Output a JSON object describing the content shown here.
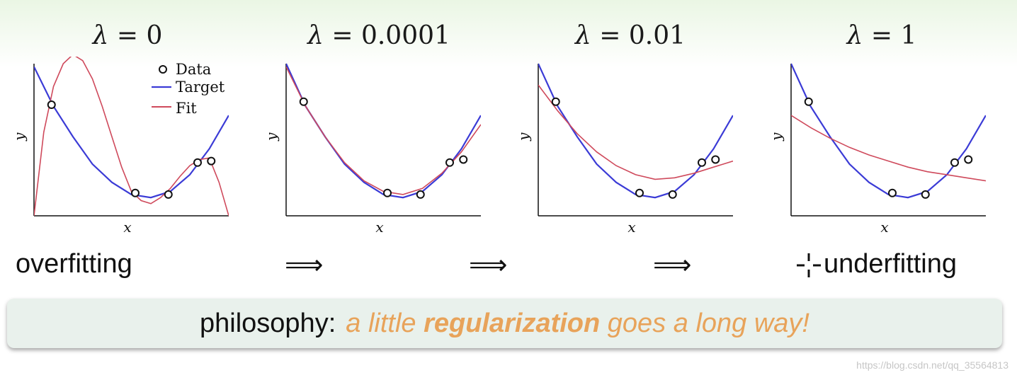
{
  "panels": [
    {
      "title_symbol": "λ",
      "title_eq": " = 0"
    },
    {
      "title_symbol": "λ",
      "title_eq": " = 0.0001"
    },
    {
      "title_symbol": "λ",
      "title_eq": " = 0.01"
    },
    {
      "title_symbol": "λ",
      "title_eq": " = 1"
    }
  ],
  "captions": {
    "left": "overfitting",
    "right": "underfitting",
    "arrow": "⟹"
  },
  "banner": {
    "lead": "philosophy:",
    "part1": "a little ",
    "bold": "regularization",
    "part2": " goes a long way!"
  },
  "watermark": "https://blog.csdn.net/qq_35564813",
  "colors": {
    "target": "#3b3bd6",
    "fit": "#cf4a5c",
    "banner_bg": "#e9f1ec",
    "accent": "#e8a35a"
  },
  "chart_data": [
    {
      "type": "line",
      "title": "λ = 0",
      "xlabel": "x",
      "ylabel": "y",
      "xlim": [
        0,
        1
      ],
      "ylim": [
        0,
        1
      ],
      "legend": [
        "Data",
        "Target",
        "Fit"
      ],
      "legend_position": "top-right",
      "data_points": [
        [
          0.09,
          0.73
        ],
        [
          0.52,
          0.15
        ],
        [
          0.69,
          0.14
        ],
        [
          0.84,
          0.35
        ],
        [
          0.91,
          0.36
        ]
      ],
      "target": [
        [
          0.0,
          0.98
        ],
        [
          0.1,
          0.72
        ],
        [
          0.2,
          0.52
        ],
        [
          0.3,
          0.34
        ],
        [
          0.4,
          0.22
        ],
        [
          0.5,
          0.14
        ],
        [
          0.6,
          0.12
        ],
        [
          0.7,
          0.16
        ],
        [
          0.8,
          0.27
        ],
        [
          0.9,
          0.44
        ],
        [
          1.0,
          0.66
        ]
      ],
      "fit": [
        [
          0.0,
          0.0
        ],
        [
          0.05,
          0.55
        ],
        [
          0.1,
          0.85
        ],
        [
          0.15,
          1.0
        ],
        [
          0.2,
          1.06
        ],
        [
          0.25,
          1.02
        ],
        [
          0.3,
          0.9
        ],
        [
          0.35,
          0.72
        ],
        [
          0.4,
          0.52
        ],
        [
          0.45,
          0.32
        ],
        [
          0.5,
          0.16
        ],
        [
          0.55,
          0.1
        ],
        [
          0.6,
          0.08
        ],
        [
          0.65,
          0.12
        ],
        [
          0.7,
          0.18
        ],
        [
          0.75,
          0.26
        ],
        [
          0.8,
          0.33
        ],
        [
          0.85,
          0.37
        ],
        [
          0.9,
          0.38
        ],
        [
          0.95,
          0.22
        ],
        [
          1.0,
          0.0
        ]
      ]
    },
    {
      "type": "line",
      "title": "λ = 0.0001",
      "xlabel": "x",
      "ylabel": "y",
      "xlim": [
        0,
        1
      ],
      "ylim": [
        0,
        1
      ],
      "data_points": [
        [
          0.09,
          0.75
        ],
        [
          0.52,
          0.15
        ],
        [
          0.69,
          0.14
        ],
        [
          0.84,
          0.35
        ],
        [
          0.91,
          0.37
        ]
      ],
      "target": [
        [
          0.0,
          1.0
        ],
        [
          0.1,
          0.72
        ],
        [
          0.2,
          0.52
        ],
        [
          0.3,
          0.34
        ],
        [
          0.4,
          0.22
        ],
        [
          0.5,
          0.14
        ],
        [
          0.6,
          0.12
        ],
        [
          0.7,
          0.16
        ],
        [
          0.8,
          0.27
        ],
        [
          0.9,
          0.44
        ],
        [
          1.0,
          0.66
        ]
      ],
      "fit": [
        [
          0.0,
          0.98
        ],
        [
          0.1,
          0.72
        ],
        [
          0.2,
          0.52
        ],
        [
          0.3,
          0.35
        ],
        [
          0.4,
          0.23
        ],
        [
          0.5,
          0.16
        ],
        [
          0.6,
          0.14
        ],
        [
          0.7,
          0.18
        ],
        [
          0.8,
          0.28
        ],
        [
          0.9,
          0.42
        ],
        [
          1.0,
          0.6
        ]
      ]
    },
    {
      "type": "line",
      "title": "λ = 0.01",
      "xlabel": "x",
      "ylabel": "y",
      "xlim": [
        0,
        1
      ],
      "ylim": [
        0,
        1
      ],
      "data_points": [
        [
          0.09,
          0.75
        ],
        [
          0.52,
          0.15
        ],
        [
          0.69,
          0.14
        ],
        [
          0.84,
          0.35
        ],
        [
          0.91,
          0.37
        ]
      ],
      "target": [
        [
          0.0,
          1.0
        ],
        [
          0.1,
          0.72
        ],
        [
          0.2,
          0.52
        ],
        [
          0.3,
          0.34
        ],
        [
          0.4,
          0.22
        ],
        [
          0.5,
          0.14
        ],
        [
          0.6,
          0.12
        ],
        [
          0.7,
          0.16
        ],
        [
          0.8,
          0.27
        ],
        [
          0.9,
          0.44
        ],
        [
          1.0,
          0.66
        ]
      ],
      "fit": [
        [
          0.0,
          0.86
        ],
        [
          0.1,
          0.69
        ],
        [
          0.2,
          0.54
        ],
        [
          0.3,
          0.42
        ],
        [
          0.4,
          0.33
        ],
        [
          0.5,
          0.27
        ],
        [
          0.6,
          0.24
        ],
        [
          0.7,
          0.25
        ],
        [
          0.8,
          0.28
        ],
        [
          0.9,
          0.32
        ],
        [
          1.0,
          0.36
        ]
      ]
    },
    {
      "type": "line",
      "title": "λ = 1",
      "xlabel": "x",
      "ylabel": "y",
      "xlim": [
        0,
        1
      ],
      "ylim": [
        0,
        1
      ],
      "data_points": [
        [
          0.09,
          0.75
        ],
        [
          0.52,
          0.15
        ],
        [
          0.69,
          0.14
        ],
        [
          0.84,
          0.35
        ],
        [
          0.91,
          0.37
        ]
      ],
      "target": [
        [
          0.0,
          1.0
        ],
        [
          0.1,
          0.72
        ],
        [
          0.2,
          0.52
        ],
        [
          0.3,
          0.34
        ],
        [
          0.4,
          0.22
        ],
        [
          0.5,
          0.14
        ],
        [
          0.6,
          0.12
        ],
        [
          0.7,
          0.16
        ],
        [
          0.8,
          0.27
        ],
        [
          0.9,
          0.44
        ],
        [
          1.0,
          0.66
        ]
      ],
      "fit": [
        [
          0.0,
          0.66
        ],
        [
          0.1,
          0.58
        ],
        [
          0.2,
          0.51
        ],
        [
          0.3,
          0.45
        ],
        [
          0.4,
          0.4
        ],
        [
          0.5,
          0.36
        ],
        [
          0.6,
          0.32
        ],
        [
          0.7,
          0.29
        ],
        [
          0.8,
          0.27
        ],
        [
          0.9,
          0.25
        ],
        [
          1.0,
          0.23
        ]
      ]
    }
  ]
}
